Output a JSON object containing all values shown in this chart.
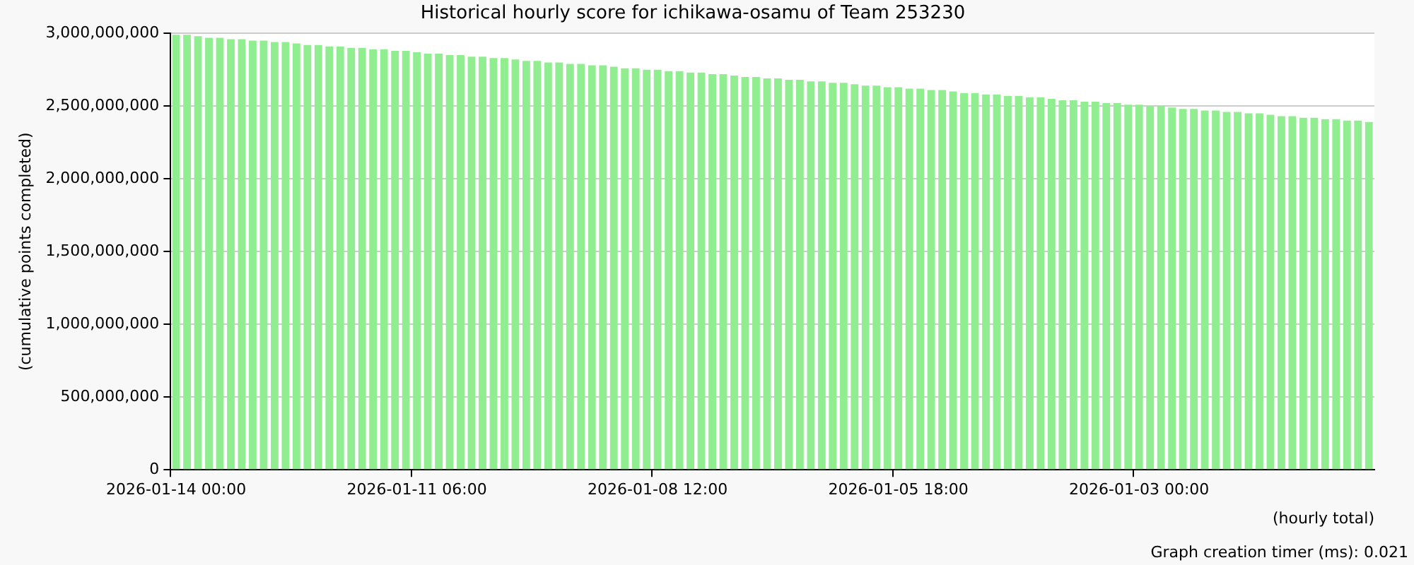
{
  "chart_data": {
    "type": "bar",
    "title": "Historical hourly score for ichikawa-osamu of Team 253230",
    "xlabel": "(hourly total)",
    "ylabel": "(cumulative points completed)",
    "annotations": [
      "Graph creation timer (ms): 0.021"
    ],
    "categories": [
      "2026-01-14 00:00",
      null,
      null,
      null,
      null,
      null,
      null,
      null,
      null,
      null,
      null,
      null,
      null,
      null,
      null,
      null,
      null,
      null,
      null,
      null,
      null,
      null,
      "2026-01-11 06:00",
      null,
      null,
      null,
      null,
      null,
      null,
      null,
      null,
      null,
      null,
      null,
      null,
      null,
      null,
      null,
      null,
      null,
      null,
      null,
      null,
      null,
      "2026-01-08 12:00",
      null,
      null,
      null,
      null,
      null,
      null,
      null,
      null,
      null,
      null,
      null,
      null,
      null,
      null,
      null,
      null,
      null,
      null,
      null,
      null,
      null,
      "2026-01-05 18:00",
      null,
      null,
      null,
      null,
      null,
      null,
      null,
      null,
      null,
      null,
      null,
      null,
      null,
      null,
      null,
      null,
      null,
      null,
      null,
      null,
      null,
      "2026-01-03 00:00",
      null,
      null,
      null,
      null,
      null,
      null,
      null,
      null,
      null,
      null,
      null,
      null,
      null,
      null,
      null,
      null,
      null,
      null,
      null,
      null,
      null
    ],
    "series": [
      {
        "color": "#90ee90",
        "values": [
          2990000000,
          2990000000,
          2980000000,
          2970000000,
          2970000000,
          2960000000,
          2960000000,
          2950000000,
          2950000000,
          2940000000,
          2940000000,
          2930000000,
          2920000000,
          2920000000,
          2910000000,
          2910000000,
          2900000000,
          2900000000,
          2890000000,
          2890000000,
          2880000000,
          2880000000,
          2870000000,
          2860000000,
          2860000000,
          2850000000,
          2850000000,
          2840000000,
          2840000000,
          2830000000,
          2830000000,
          2820000000,
          2810000000,
          2810000000,
          2800000000,
          2800000000,
          2790000000,
          2790000000,
          2780000000,
          2780000000,
          2770000000,
          2760000000,
          2760000000,
          2750000000,
          2750000000,
          2740000000,
          2740000000,
          2730000000,
          2730000000,
          2720000000,
          2720000000,
          2710000000,
          2700000000,
          2700000000,
          2690000000,
          2690000000,
          2680000000,
          2680000000,
          2670000000,
          2670000000,
          2660000000,
          2660000000,
          2650000000,
          2640000000,
          2640000000,
          2630000000,
          2630000000,
          2620000000,
          2620000000,
          2610000000,
          2610000000,
          2600000000,
          2590000000,
          2590000000,
          2580000000,
          2580000000,
          2570000000,
          2570000000,
          2560000000,
          2560000000,
          2550000000,
          2540000000,
          2540000000,
          2530000000,
          2530000000,
          2520000000,
          2520000000,
          2510000000,
          2510000000,
          2500000000,
          2500000000,
          2490000000,
          2480000000,
          2480000000,
          2470000000,
          2470000000,
          2460000000,
          2460000000,
          2450000000,
          2450000000,
          2440000000,
          2430000000,
          2430000000,
          2420000000,
          2420000000,
          2410000000,
          2410000000,
          2400000000,
          2400000000,
          2390000000
        ]
      }
    ],
    "ylim": [
      0,
      3000000000
    ],
    "yticks": [
      0,
      {
        "value": 500000000,
        "label": "500,000,000"
      },
      {
        "value": 1000000000,
        "label": "1,000,000,000"
      },
      {
        "value": 1500000000,
        "label": "1,500,000,000"
      },
      {
        "value": 2000000000,
        "label": "2,000,000,000"
      },
      {
        "value": 2500000000,
        "label": "2,500,000,000"
      },
      {
        "value": 3000000000,
        "label": "3,000,000,000"
      }
    ],
    "grid": "y",
    "legend": false
  }
}
